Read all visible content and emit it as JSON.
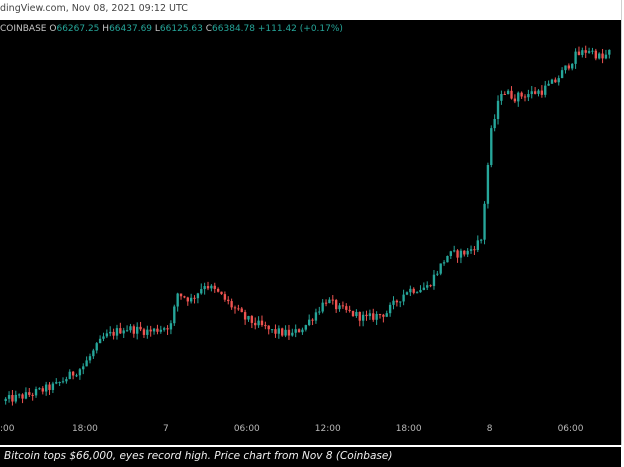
{
  "header": {
    "attribution": "dingView.com, Nov 08, 2021 09:12 UTC"
  },
  "legend": {
    "symbol": "COINBASE",
    "open_label": "O",
    "open": "66267.25",
    "high_label": "H",
    "high": "66437.69",
    "low_label": "L",
    "low": "66125.63",
    "close_label": "C",
    "close": "66384.78",
    "change": "+111.42 (+0.17%)"
  },
  "caption": "Bitcoin tops $66,000, eyes record high. Price chart from Nov 8 (Coinbase)",
  "colors": {
    "up": "#26a69a",
    "down": "#ef5350",
    "background": "#000000"
  },
  "chart_data": {
    "type": "candlestick",
    "title": "",
    "x_ticks": [
      {
        "label": ":00",
        "hour": 0
      },
      {
        "label": "18:00",
        "hour": 6
      },
      {
        "label": "7",
        "hour": 12
      },
      {
        "label": "06:00",
        "hour": 18
      },
      {
        "label": "12:00",
        "hour": 24
      },
      {
        "label": "18:00",
        "hour": 30
      },
      {
        "label": "8",
        "hour": 36
      },
      {
        "label": "06:00",
        "hour": 42
      }
    ],
    "x_range_hours": [
      0,
      45
    ],
    "candle_interval_minutes": 15,
    "grid": false,
    "legend": "top-left",
    "path": [
      [
        0,
        60900
      ],
      [
        2,
        61000
      ],
      [
        4,
        61150
      ],
      [
        6,
        61450
      ],
      [
        7.5,
        61900
      ],
      [
        9,
        62050
      ],
      [
        11,
        62000
      ],
      [
        12.5,
        62100
      ],
      [
        13,
        62600
      ],
      [
        14,
        62500
      ],
      [
        15,
        62750
      ],
      [
        16,
        62600
      ],
      [
        18,
        62200
      ],
      [
        20,
        62000
      ],
      [
        21.5,
        61950
      ],
      [
        22.5,
        62100
      ],
      [
        24,
        62500
      ],
      [
        25,
        62350
      ],
      [
        27,
        62200
      ],
      [
        28.5,
        62300
      ],
      [
        30,
        62650
      ],
      [
        31.5,
        62700
      ],
      [
        33,
        63200
      ],
      [
        34.5,
        63250
      ],
      [
        35.5,
        63450
      ],
      [
        36.2,
        65100
      ],
      [
        37,
        65800
      ],
      [
        38,
        65700
      ],
      [
        40,
        65800
      ],
      [
        41,
        65950
      ],
      [
        42.5,
        66350
      ],
      [
        43.5,
        66450
      ],
      [
        44.5,
        66300
      ],
      [
        45,
        66400
      ]
    ],
    "candle_count": 180,
    "y_range": [
      60600,
      66600
    ]
  }
}
